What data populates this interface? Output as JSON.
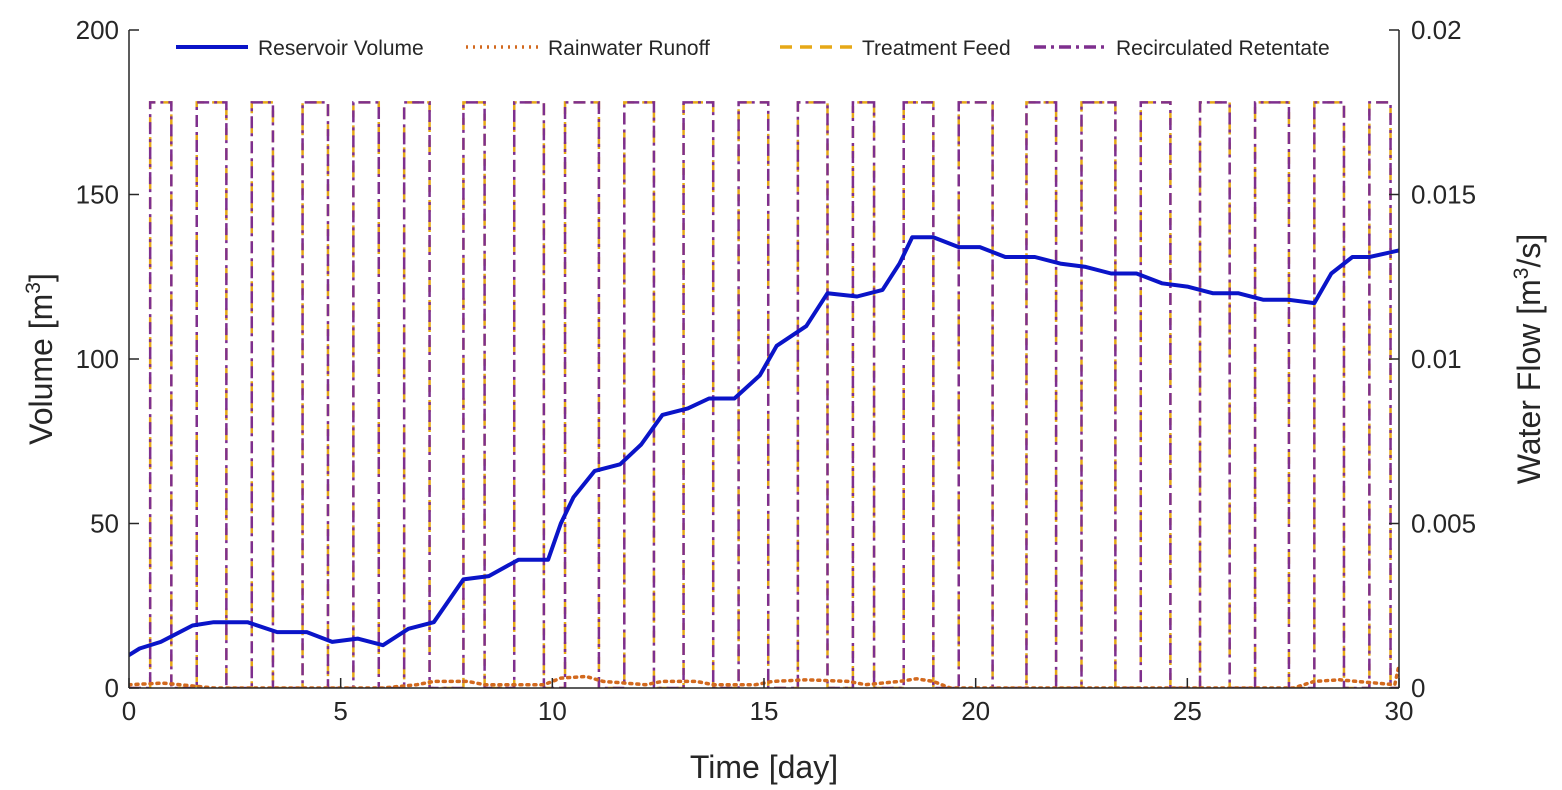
{
  "chart_data": {
    "type": "line",
    "xlabel": "Time [day]",
    "ylabel_left": {
      "text": "Volume [m",
      "sup": "3",
      "suffix": "]"
    },
    "ylabel_right": {
      "text": "Water Flow [m",
      "sup": "3",
      "suffix": "/s]"
    },
    "xlim": [
      0,
      30
    ],
    "ylim_left": [
      0,
      200
    ],
    "ylim_right": [
      0,
      0.02
    ],
    "xticks": [
      "0",
      "5",
      "10",
      "15",
      "20",
      "25",
      "30"
    ],
    "yticks_left": [
      "0",
      "50",
      "100",
      "150",
      "200"
    ],
    "yticks_right": [
      "0",
      "0.005",
      "0.01",
      "0.015",
      "0.02"
    ],
    "grid": false,
    "legend_position": "top",
    "series": [
      {
        "name": "Reservoir Volume",
        "axis": "left",
        "color": "#0a14c8",
        "style": "solid",
        "x": [
          0,
          0.25,
          0.75,
          1.5,
          2.0,
          2.8,
          3.5,
          4.2,
          4.8,
          5.4,
          6.0,
          6.6,
          7.2,
          7.9,
          8.5,
          9.2,
          9.9,
          10.2,
          10.5,
          11.0,
          11.6,
          12.1,
          12.6,
          13.2,
          13.7,
          14.3,
          14.9,
          15.3,
          16.0,
          16.5,
          17.2,
          17.8,
          18.2,
          18.5,
          19.0,
          19.6,
          20.1,
          20.7,
          21.4,
          22.0,
          22.6,
          23.2,
          23.8,
          24.4,
          25.0,
          25.6,
          26.2,
          26.8,
          27.4,
          28.0,
          28.4,
          28.9,
          29.3,
          30.0
        ],
        "y": [
          10,
          12,
          14,
          19,
          20,
          20,
          17,
          17,
          14,
          15,
          13,
          18,
          20,
          33,
          34,
          39,
          39,
          50,
          58,
          66,
          68,
          74,
          83,
          85,
          88,
          88,
          95,
          104,
          110,
          120,
          119,
          121,
          129,
          137,
          137,
          134,
          134,
          131,
          131,
          129,
          128,
          126,
          126,
          123,
          122,
          120,
          120,
          118,
          118,
          117,
          126,
          131,
          131,
          133
        ]
      },
      {
        "name": "Rainwater Runoff",
        "axis": "right",
        "color": "#d2691e",
        "style": "dotted",
        "x": [
          0,
          0.3,
          0.8,
          1.2,
          2.0,
          4.0,
          6.0,
          6.8,
          7.2,
          8.0,
          8.4,
          9.8,
          10.2,
          10.8,
          11.2,
          12.2,
          12.6,
          13.4,
          13.8,
          14.8,
          15.2,
          16.0,
          17.0,
          17.4,
          18.2,
          18.6,
          19.0,
          19.4,
          22.0,
          27.5,
          28.0,
          28.6,
          29.0,
          29.9,
          30.0
        ],
        "y": [
          0.0001,
          0.00012,
          0.00015,
          0.0001,
          0.0,
          0.0,
          0.0,
          0.0001,
          0.0002,
          0.0002,
          0.0001,
          0.0001,
          0.0003,
          0.00035,
          0.0002,
          0.0001,
          0.0002,
          0.0002,
          0.0001,
          0.0001,
          0.0002,
          0.00025,
          0.0002,
          0.0001,
          0.0002,
          0.00028,
          0.0002,
          0.0,
          0.0,
          0.0,
          0.0002,
          0.00025,
          0.0002,
          0.0001,
          0.0007
        ]
      },
      {
        "name": "Treatment Feed",
        "axis": "right",
        "color": "#e6a817",
        "style": "dashed",
        "pulse_level": 0.0178,
        "pulses": [
          [
            0.5,
            1.0
          ],
          [
            1.6,
            2.3
          ],
          [
            2.9,
            3.4
          ],
          [
            4.1,
            4.7
          ],
          [
            5.3,
            5.9
          ],
          [
            6.5,
            7.1
          ],
          [
            7.9,
            8.4
          ],
          [
            9.1,
            9.8
          ],
          [
            10.3,
            11.1
          ],
          [
            11.7,
            12.4
          ],
          [
            13.1,
            13.8
          ],
          [
            14.4,
            15.1
          ],
          [
            15.8,
            16.5
          ],
          [
            17.1,
            17.6
          ],
          [
            18.3,
            19.0
          ],
          [
            19.6,
            20.4
          ],
          [
            21.2,
            21.9
          ],
          [
            22.5,
            23.3
          ],
          [
            23.9,
            24.6
          ],
          [
            25.3,
            26.0
          ],
          [
            26.6,
            27.4
          ],
          [
            28.0,
            28.7
          ],
          [
            29.3,
            29.8
          ]
        ]
      },
      {
        "name": "Recirculated Retentate",
        "axis": "right",
        "color": "#7e2f8e",
        "style": "dashdot",
        "pulse_level": 0.0178,
        "pulses": [
          [
            0.5,
            1.0
          ],
          [
            1.6,
            2.3
          ],
          [
            2.9,
            3.4
          ],
          [
            4.1,
            4.7
          ],
          [
            5.3,
            5.9
          ],
          [
            6.5,
            7.1
          ],
          [
            7.9,
            8.4
          ],
          [
            9.1,
            9.8
          ],
          [
            10.3,
            11.1
          ],
          [
            11.7,
            12.4
          ],
          [
            13.1,
            13.8
          ],
          [
            14.4,
            15.1
          ],
          [
            15.8,
            16.5
          ],
          [
            17.1,
            17.6
          ],
          [
            18.3,
            19.0
          ],
          [
            19.6,
            20.4
          ],
          [
            21.2,
            21.9
          ],
          [
            22.5,
            23.3
          ],
          [
            23.9,
            24.6
          ],
          [
            25.3,
            26.0
          ],
          [
            26.6,
            27.4
          ],
          [
            28.0,
            28.7
          ],
          [
            29.3,
            29.8
          ]
        ]
      }
    ]
  }
}
